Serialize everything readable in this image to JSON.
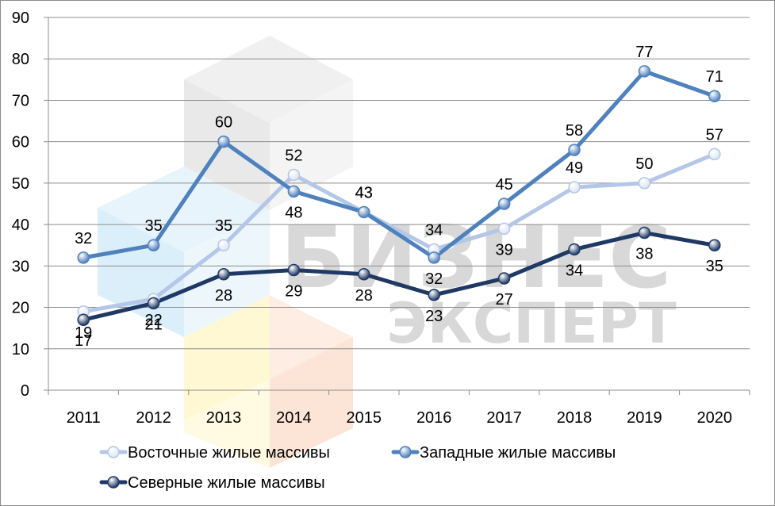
{
  "chart_data": {
    "type": "line",
    "categories": [
      "2011",
      "2012",
      "2013",
      "2014",
      "2015",
      "2016",
      "2017",
      "2018",
      "2019",
      "2020"
    ],
    "ylim": [
      0,
      90
    ],
    "y_ticks": [
      "0",
      "10",
      "20",
      "30",
      "40",
      "50",
      "60",
      "70",
      "80",
      "90"
    ],
    "grid": "horizontal",
    "legend_position": "bottom",
    "series": [
      {
        "name": "Восточные жилые массивы",
        "color": "#b4c7e7",
        "marker_color": "#dce6f2",
        "values": [
          19,
          22,
          35,
          52,
          43,
          34,
          39,
          49,
          50,
          57
        ]
      },
      {
        "name": "Западные жилые массивы",
        "color": "#4f81bd",
        "marker_color": "#4f81bd",
        "values": [
          32,
          35,
          60,
          48,
          43,
          32,
          45,
          58,
          77,
          71
        ]
      },
      {
        "name": "Северные жилые массивы",
        "color": "#1f3864",
        "marker_color": "#1f3864",
        "values": [
          17,
          21,
          28,
          29,
          28,
          23,
          27,
          34,
          38,
          35
        ]
      }
    ],
    "watermark": {
      "line1": "БИЗНЕС",
      "line2": "ЭКСПЕРТ"
    }
  }
}
